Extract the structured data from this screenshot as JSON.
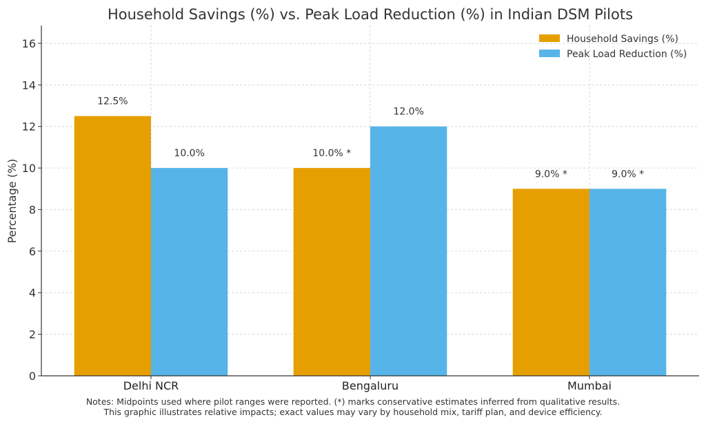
{
  "chart_data": {
    "type": "bar",
    "title": "Household Savings (%) vs. Peak Load Reduction (%) in Indian DSM Pilots",
    "xlabel": "",
    "ylabel": "Percentage (%)",
    "ylim": [
      0,
      16.86
    ],
    "yticks": [
      0,
      2,
      4,
      6,
      8,
      10,
      12,
      14,
      16
    ],
    "grid": true,
    "legend_position": "top-right",
    "categories": [
      "Delhi NCR",
      "Bengaluru",
      "Mumbai"
    ],
    "series": [
      {
        "name": "Household Savings (%)",
        "color": "#E69F00",
        "values": [
          12.5,
          10.0,
          9.0
        ],
        "labels": [
          "12.5%",
          "10.0% *",
          "9.0% *"
        ]
      },
      {
        "name": "Peak Load Reduction (%)",
        "color": "#56B4E9",
        "values": [
          10.0,
          12.0,
          9.0
        ],
        "labels": [
          "10.0%",
          "12.0%",
          "9.0% *"
        ]
      }
    ],
    "notes": [
      "Notes: Midpoints used where pilot ranges were reported. (*) marks conservative estimates inferred from qualitative results.",
      "This graphic illustrates relative impacts; exact values may vary by household mix, tariff plan, and device efficiency."
    ]
  }
}
